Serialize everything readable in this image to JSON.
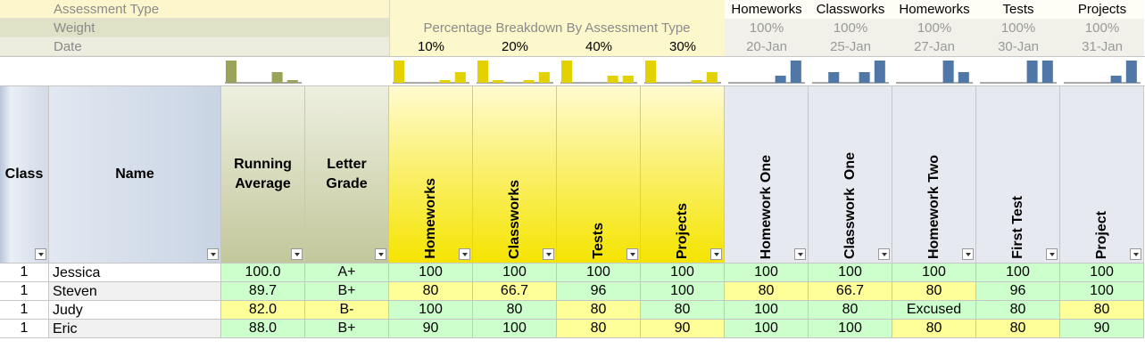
{
  "labels": {
    "assessment_type": "Assessment Type",
    "weight": "Weight",
    "date": "Date",
    "breakdown_title": "Percentage Breakdown By Assessment Type"
  },
  "columns": {
    "class": "Class",
    "name": "Name",
    "running_average": "Running Average",
    "letter_grade": "Letter Grade"
  },
  "summary_sparkline": {
    "color": "#9ba35b",
    "values": [
      25,
      0,
      0,
      12,
      3
    ]
  },
  "categories": {
    "color": "#e3d200",
    "items": [
      {
        "name": "Homeworks",
        "percentage": "10%",
        "sparkline": [
          25,
          0,
          0,
          3,
          12
        ]
      },
      {
        "name": "Classworks",
        "percentage": "20%",
        "sparkline": [
          25,
          3,
          0,
          3,
          12
        ]
      },
      {
        "name": "Tests",
        "percentage": "40%",
        "sparkline": [
          25,
          0,
          0,
          8,
          8
        ]
      },
      {
        "name": "Projects",
        "percentage": "30%",
        "sparkline": [
          25,
          0,
          0,
          3,
          12
        ]
      }
    ]
  },
  "assignments": {
    "color": "#4f77a8",
    "items": [
      {
        "type": "Homeworks",
        "weight": "100%",
        "date": "20-Jan",
        "name": "Homework One",
        "sparkline": [
          0,
          0,
          0,
          8,
          25
        ]
      },
      {
        "type": "Classworks",
        "weight": "100%",
        "date": "25-Jan",
        "name": "Classwork  One",
        "sparkline": [
          0,
          12,
          0,
          12,
          25
        ]
      },
      {
        "type": "Homeworks",
        "weight": "100%",
        "date": "27-Jan",
        "name": "Homework Two",
        "sparkline": [
          0,
          0,
          0,
          25,
          12
        ]
      },
      {
        "type": "Tests",
        "weight": "100%",
        "date": "30-Jan",
        "name": "First Test",
        "sparkline": [
          0,
          0,
          0,
          25,
          25
        ]
      },
      {
        "type": "Projects",
        "weight": "100%",
        "date": "31-Jan",
        "name": "Project",
        "sparkline": [
          0,
          0,
          0,
          8,
          25
        ]
      }
    ]
  },
  "rows": [
    {
      "class": "1",
      "name": "Jessica",
      "cells": [
        "100.0",
        "A+",
        "100",
        "100",
        "100",
        "100",
        "100",
        "100",
        "100",
        "100",
        "100"
      ],
      "fills": [
        "#ccffcc",
        "#ccffcc",
        "#ccffcc",
        "#ccffcc",
        "#ccffcc",
        "#ccffcc",
        "#ccffcc",
        "#ccffcc",
        "#ccffcc",
        "#ccffcc",
        "#ccffcc"
      ]
    },
    {
      "class": "1",
      "name": "Steven",
      "cells": [
        "89.7",
        "B+",
        "80",
        "66.7",
        "96",
        "100",
        "80",
        "66.7",
        "80",
        "96",
        "100"
      ],
      "fills": [
        "#ccffcc",
        "#ccffcc",
        "#ffff99",
        "#ffff99",
        "#ccffcc",
        "#ccffcc",
        "#ffff99",
        "#ffff99",
        "#ffff99",
        "#ccffcc",
        "#ccffcc"
      ]
    },
    {
      "class": "1",
      "name": "Judy",
      "cells": [
        "82.0",
        "B-",
        "100",
        "80",
        "80",
        "80",
        "100",
        "80",
        "Excused",
        "80",
        "80"
      ],
      "fills": [
        "#ffff99",
        "#ffff99",
        "#ccffcc",
        "#ccffcc",
        "#ffff99",
        "#ccffcc",
        "#ccffcc",
        "#ccffcc",
        "#ccffcc",
        "#ccffcc",
        "#ffff99"
      ]
    },
    {
      "class": "1",
      "name": "Eric",
      "cells": [
        "88.0",
        "B+",
        "90",
        "100",
        "80",
        "90",
        "100",
        "100",
        "80",
        "80",
        "90"
      ],
      "fills": [
        "#ccffcc",
        "#ccffcc",
        "#ccffcc",
        "#ccffcc",
        "#ffff99",
        "#ffff99",
        "#ccffcc",
        "#ccffcc",
        "#ffff99",
        "#ffff99",
        "#ccffcc"
      ]
    }
  ]
}
